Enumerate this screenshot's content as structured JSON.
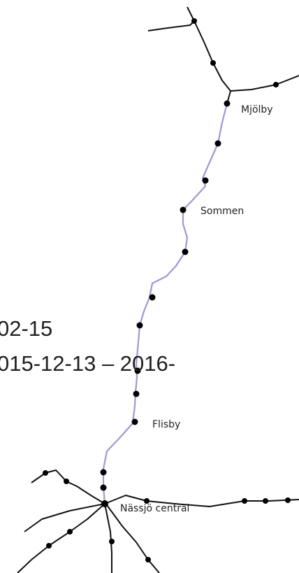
{
  "places": [
    "Mjölby",
    "Sommen",
    "Flisby",
    "Nässjö central"
  ],
  "overlay_text": [
    "02-15",
    "015-12-13 – 2016-"
  ]
}
